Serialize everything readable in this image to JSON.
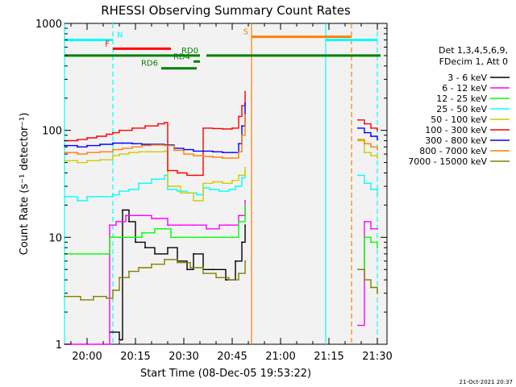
{
  "chart_data": {
    "type": "line",
    "title": "RHESSI Observing Summary Count Rates",
    "xlabel": "Start Time (08-Dec-05 19:53:22)",
    "ylabel": "Count Rate (s⁻¹ detector⁻¹)",
    "y_scale": "log",
    "ylim": [
      1,
      1000
    ],
    "xlim": [
      "19:53",
      "21:33"
    ],
    "x_ticks": [
      "20:00",
      "20:15",
      "20:30",
      "20:45",
      "21:00",
      "21:15",
      "21:30"
    ],
    "y_ticks": [
      "1",
      "10",
      "100",
      "1000"
    ],
    "grid": false,
    "legend_position": "right",
    "legend_header": [
      "Det 1,3,4,5,6,9,",
      "FDecim 1, Att 0"
    ],
    "footer_date": "21-Oct-2021 20:37",
    "series": [
      {
        "name": "3 - 6 keV",
        "color": "#000000",
        "points": [
          [
            "20:07",
            1.3
          ],
          [
            "20:10",
            1.1
          ],
          [
            "20:11",
            18
          ],
          [
            "20:13",
            14
          ],
          [
            "20:15",
            9
          ],
          [
            "20:18",
            8
          ],
          [
            "20:21",
            7
          ],
          [
            "20:25",
            8
          ],
          [
            "20:28",
            6
          ],
          [
            "20:31",
            5
          ],
          [
            "20:33",
            7
          ],
          [
            "20:36",
            5
          ],
          [
            "20:39",
            5
          ],
          [
            "20:43",
            4
          ],
          [
            "20:46",
            6
          ],
          [
            "20:48",
            9
          ],
          [
            "20:49",
            13
          ]
        ]
      },
      {
        "name": "6 - 12 keV",
        "color": "#ff00ff",
        "points": [
          [
            "19:53",
            1.0
          ],
          [
            "20:06",
            1.0
          ],
          [
            "20:07",
            13
          ],
          [
            "20:09",
            14
          ],
          [
            "20:12",
            16
          ],
          [
            "20:16",
            16
          ],
          [
            "20:20",
            15
          ],
          [
            "20:25",
            13
          ],
          [
            "20:29",
            13
          ],
          [
            "20:33",
            13
          ],
          [
            "20:37",
            12
          ],
          [
            "20:41",
            13
          ],
          [
            "20:44",
            13
          ],
          [
            "20:47",
            16
          ],
          [
            "20:49",
            22
          ],
          [
            "21:24",
            1.5
          ],
          [
            "21:26",
            14
          ],
          [
            "21:28",
            12
          ],
          [
            "21:30",
            12
          ]
        ]
      },
      {
        "name": "12 - 25 keV",
        "color": "#00ff00",
        "points": [
          [
            "19:53",
            7
          ],
          [
            "20:00",
            7
          ],
          [
            "20:06",
            7
          ],
          [
            "20:07",
            10
          ],
          [
            "20:10",
            10
          ],
          [
            "20:13",
            10
          ],
          [
            "20:17",
            11
          ],
          [
            "20:21",
            12
          ],
          [
            "20:24",
            12
          ],
          [
            "20:26",
            10
          ],
          [
            "20:30",
            10
          ],
          [
            "20:34",
            10
          ],
          [
            "20:37",
            10
          ],
          [
            "20:41",
            10
          ],
          [
            "20:45",
            10
          ],
          [
            "20:47",
            14
          ],
          [
            "20:49",
            20
          ],
          [
            "21:24",
            5
          ],
          [
            "21:26",
            10
          ],
          [
            "21:28",
            9
          ],
          [
            "21:30",
            8
          ]
        ]
      },
      {
        "name": "25 - 50 keV",
        "color": "#00ffff",
        "points": [
          [
            "19:53",
            24
          ],
          [
            "19:57",
            22
          ],
          [
            "20:00",
            24
          ],
          [
            "20:04",
            24
          ],
          [
            "20:08",
            25
          ],
          [
            "20:10",
            27
          ],
          [
            "20:13",
            28
          ],
          [
            "20:16",
            32
          ],
          [
            "20:20",
            35
          ],
          [
            "20:24",
            38
          ],
          [
            "20:25",
            28
          ],
          [
            "20:28",
            27
          ],
          [
            "20:31",
            26
          ],
          [
            "20:34",
            25
          ],
          [
            "20:36",
            29
          ],
          [
            "20:38",
            28
          ],
          [
            "20:41",
            27
          ],
          [
            "20:44",
            28
          ],
          [
            "20:46",
            30
          ],
          [
            "20:48",
            36
          ],
          [
            "20:49",
            42
          ],
          [
            "21:24",
            38
          ],
          [
            "21:26",
            32
          ],
          [
            "21:28",
            28
          ],
          [
            "21:30",
            25
          ]
        ]
      },
      {
        "name": "50 - 100 keV",
        "color": "#cccc00",
        "points": [
          [
            "19:53",
            52
          ],
          [
            "19:57",
            50
          ],
          [
            "20:00",
            52
          ],
          [
            "20:04",
            53
          ],
          [
            "20:08",
            58
          ],
          [
            "20:10",
            60
          ],
          [
            "20:13",
            62
          ],
          [
            "20:16",
            63
          ],
          [
            "20:20",
            63
          ],
          [
            "20:24",
            64
          ],
          [
            "20:25",
            30
          ],
          [
            "20:29",
            26
          ],
          [
            "20:33",
            22
          ],
          [
            "20:34",
            22
          ],
          [
            "20:36",
            32
          ],
          [
            "20:39",
            33
          ],
          [
            "20:42",
            32
          ],
          [
            "20:45",
            34
          ],
          [
            "20:47",
            38
          ],
          [
            "20:49",
            45
          ],
          [
            "21:24",
            80
          ],
          [
            "21:26",
            62
          ],
          [
            "21:28",
            58
          ],
          [
            "21:30",
            55
          ]
        ]
      },
      {
        "name": "100 - 300 keV",
        "color": "#ff0000",
        "points": [
          [
            "19:53",
            80
          ],
          [
            "19:57",
            82
          ],
          [
            "20:00",
            85
          ],
          [
            "20:03",
            88
          ],
          [
            "20:06",
            92
          ],
          [
            "20:08",
            95
          ],
          [
            "20:10",
            100
          ],
          [
            "20:14",
            105
          ],
          [
            "20:18",
            110
          ],
          [
            "20:22",
            115
          ],
          [
            "20:24",
            118
          ],
          [
            "20:25",
            42
          ],
          [
            "20:28",
            40
          ],
          [
            "20:31",
            38
          ],
          [
            "20:34",
            38
          ],
          [
            "20:36",
            105
          ],
          [
            "20:39",
            104
          ],
          [
            "20:42",
            103
          ],
          [
            "20:45",
            105
          ],
          [
            "20:47",
            135
          ],
          [
            "20:48",
            170
          ],
          [
            "20:49",
            230
          ],
          [
            "21:24",
            125
          ],
          [
            "21:26",
            115
          ],
          [
            "21:28",
            105
          ],
          [
            "21:30",
            100
          ]
        ]
      },
      {
        "name": "300 - 800 keV",
        "color": "#0000ff",
        "points": [
          [
            "19:53",
            72
          ],
          [
            "19:57",
            70
          ],
          [
            "20:00",
            72
          ],
          [
            "20:04",
            74
          ],
          [
            "20:08",
            76
          ],
          [
            "20:11",
            76
          ],
          [
            "20:14",
            75
          ],
          [
            "20:17",
            74
          ],
          [
            "20:20",
            74
          ],
          [
            "20:24",
            73
          ],
          [
            "20:27",
            68
          ],
          [
            "20:30",
            66
          ],
          [
            "20:33",
            64
          ],
          [
            "20:36",
            64
          ],
          [
            "20:39",
            63
          ],
          [
            "20:42",
            62
          ],
          [
            "20:45",
            62
          ],
          [
            "20:47",
            75
          ],
          [
            "20:48",
            110
          ],
          [
            "20:49",
            180
          ],
          [
            "21:24",
            105
          ],
          [
            "21:26",
            95
          ],
          [
            "21:28",
            88
          ],
          [
            "21:30",
            82
          ]
        ]
      },
      {
        "name": "800 - 7000 keV",
        "color": "#ff8000",
        "points": [
          [
            "19:53",
            62
          ],
          [
            "19:57",
            60
          ],
          [
            "20:00",
            62
          ],
          [
            "20:04",
            63
          ],
          [
            "20:08",
            66
          ],
          [
            "20:11",
            68
          ],
          [
            "20:14",
            70
          ],
          [
            "20:17",
            72
          ],
          [
            "20:20",
            73
          ],
          [
            "20:24",
            72
          ],
          [
            "20:27",
            65
          ],
          [
            "20:30",
            60
          ],
          [
            "20:33",
            58
          ],
          [
            "20:36",
            57
          ],
          [
            "20:39",
            56
          ],
          [
            "20:42",
            55
          ],
          [
            "20:45",
            55
          ],
          [
            "20:47",
            63
          ],
          [
            "20:48",
            90
          ],
          [
            "20:49",
            140
          ],
          [
            "21:24",
            82
          ],
          [
            "21:26",
            75
          ],
          [
            "21:28",
            70
          ],
          [
            "21:30",
            66
          ]
        ]
      },
      {
        "name": "7000 - 15000 keV",
        "color": "#808000",
        "points": [
          [
            "19:53",
            2.8
          ],
          [
            "19:58",
            2.6
          ],
          [
            "20:02",
            2.8
          ],
          [
            "20:06",
            2.7
          ],
          [
            "20:08",
            3.2
          ],
          [
            "20:10",
            4.2
          ],
          [
            "20:13",
            4.8
          ],
          [
            "20:16",
            5.2
          ],
          [
            "20:20",
            5.6
          ],
          [
            "20:24",
            6.2
          ],
          [
            "20:28",
            5.8
          ],
          [
            "20:32",
            5.2
          ],
          [
            "20:36",
            4.6
          ],
          [
            "20:40",
            4.2
          ],
          [
            "20:44",
            4.0
          ],
          [
            "20:47",
            4.6
          ],
          [
            "20:49",
            6
          ],
          [
            "21:24",
            5
          ],
          [
            "21:26",
            4
          ],
          [
            "21:28",
            3.4
          ],
          [
            "21:30",
            3
          ]
        ]
      }
    ],
    "state_bars": [
      {
        "label": "N",
        "color": "#00ffff",
        "value": 700,
        "segments": [
          [
            "19:53",
            "20:08"
          ],
          [
            "21:14",
            "21:30"
          ]
        ]
      },
      {
        "label": "F",
        "color": "#ff0000",
        "value": 580,
        "segments": [
          [
            "20:08",
            "20:26"
          ]
        ]
      },
      {
        "label": "S",
        "color": "#ff8000",
        "value": 750,
        "segments": [
          [
            "20:51",
            "21:22"
          ]
        ]
      },
      {
        "label": "RD0",
        "color": "#008000",
        "value": 500,
        "segments": [
          [
            "19:53",
            "20:35"
          ],
          [
            "20:37",
            "21:31"
          ]
        ]
      },
      {
        "label": "RD4",
        "color": "#008000",
        "value": 440,
        "segments": [
          [
            "20:33",
            "20:35"
          ]
        ]
      },
      {
        "label": "RD6",
        "color": "#008000",
        "value": 380,
        "segments": [
          [
            "20:23",
            "20:34"
          ]
        ]
      }
    ],
    "markers": [
      {
        "time": "19:53",
        "color": "#00ffff",
        "style": "solid"
      },
      {
        "time": "20:08",
        "color": "#00ffff",
        "style": "dashed"
      },
      {
        "time": "20:51",
        "color": "#ff8000",
        "style": "solid"
      },
      {
        "time": "21:14",
        "color": "#00ffff",
        "style": "solid"
      },
      {
        "time": "21:22",
        "color": "#ff8000",
        "style": "dashed"
      },
      {
        "time": "21:30",
        "color": "#00ffff",
        "style": "dashed"
      }
    ]
  }
}
